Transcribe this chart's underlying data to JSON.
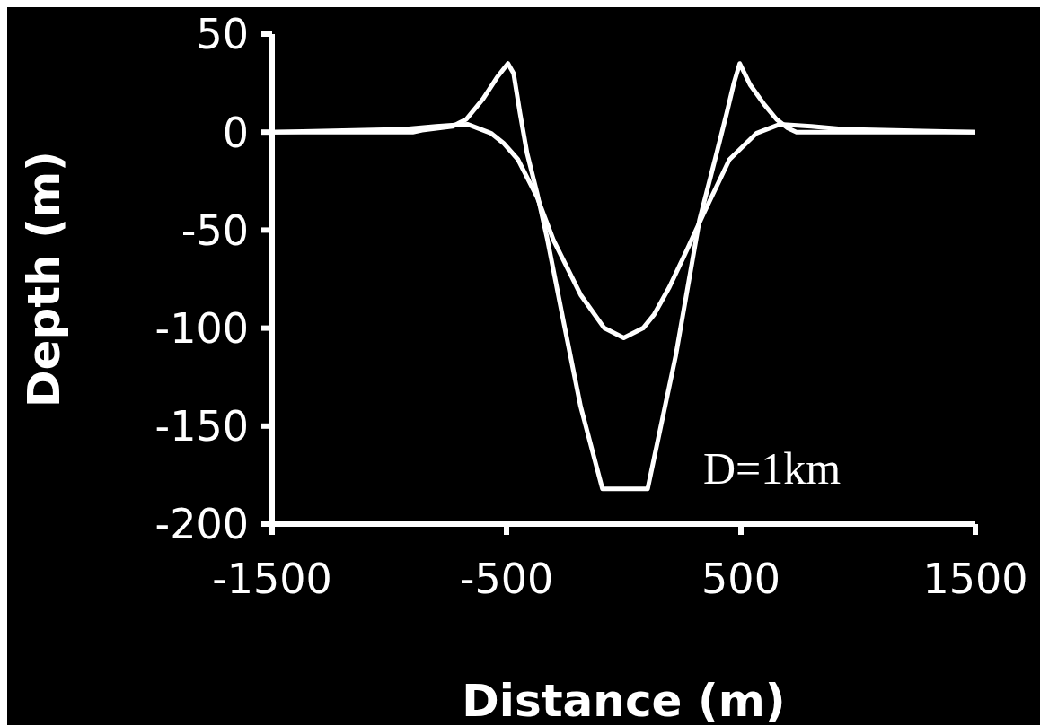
{
  "chart_data": {
    "type": "line",
    "xlabel": "Distance (m)",
    "ylabel": "Depth (m)",
    "annotations": [
      "D=1km"
    ],
    "xlim": [
      -1500,
      1500
    ],
    "xticks": [
      -1500,
      -500,
      500,
      1500
    ],
    "ylim": [
      -200,
      50
    ],
    "yticks": [
      50,
      0,
      -50,
      -100,
      -150,
      -200
    ],
    "marker": "none",
    "line_style": "solid",
    "series": [
      {
        "color": "#ffffff",
        "x": [
          -1500,
          -900,
          -860,
          -730,
          -672,
          -600,
          -540,
          -494,
          -470,
          -443,
          -412,
          -370,
          -327,
          -257,
          -184,
          -91,
          102,
          222,
          323,
          396,
          440,
          470,
          495,
          540,
          600,
          652,
          700,
          737,
          1500
        ],
        "values": [
          0,
          0,
          1,
          3,
          6.5,
          17,
          28,
          35,
          30,
          10,
          -11,
          -31,
          -54,
          -96.5,
          -140,
          -182,
          -182,
          -114,
          -45,
          -11,
          10,
          25,
          35,
          24,
          14,
          6.5,
          2,
          0,
          0
        ]
      },
      {
        "color": "#ffffff",
        "x": [
          -1500,
          -938,
          -800,
          -667,
          -567,
          -513,
          -451,
          -370,
          -300,
          -184,
          -83,
          0,
          83,
          130,
          195,
          270,
          339,
          451,
          567,
          667,
          800,
          938,
          1500
        ],
        "values": [
          0,
          1.5,
          3,
          4,
          -0.5,
          -5.6,
          -14,
          -33,
          -55,
          -83,
          -100,
          -105,
          -100,
          -93,
          -79,
          -60,
          -42,
          -14,
          -0.5,
          4,
          3,
          1.5,
          0
        ]
      }
    ]
  }
}
